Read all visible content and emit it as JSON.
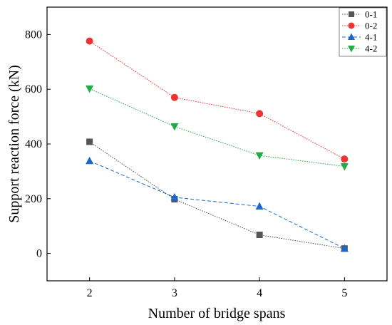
{
  "chart_data": {
    "type": "line",
    "xlabel": "Number of bridge spans",
    "ylabel": "Support reaction force (kN)",
    "x": [
      2,
      3,
      4,
      5
    ],
    "xlim": [
      1.5,
      5.5
    ],
    "ylim": [
      -100,
      900
    ],
    "xticks": [
      2,
      3,
      4,
      5
    ],
    "yticks": [
      0,
      200,
      400,
      600,
      800
    ],
    "grid": false,
    "legend_position": "top-right",
    "series": [
      {
        "name": "0-1",
        "values": [
          408,
          198,
          68,
          18
        ],
        "color": "#555555",
        "marker": "square",
        "line_style": "dotted"
      },
      {
        "name": "0-2",
        "values": [
          776,
          570,
          511,
          345
        ],
        "color": "#ee3333",
        "marker": "circle",
        "line_style": "dotted"
      },
      {
        "name": "4-1",
        "values": [
          338,
          205,
          172,
          18
        ],
        "color": "#1a66cc",
        "marker": "triangle-up",
        "line_style": "dashed"
      },
      {
        "name": "4-2",
        "values": [
          602,
          464,
          358,
          318
        ],
        "color": "#22aa44",
        "marker": "triangle-down",
        "line_style": "dotted"
      }
    ]
  }
}
